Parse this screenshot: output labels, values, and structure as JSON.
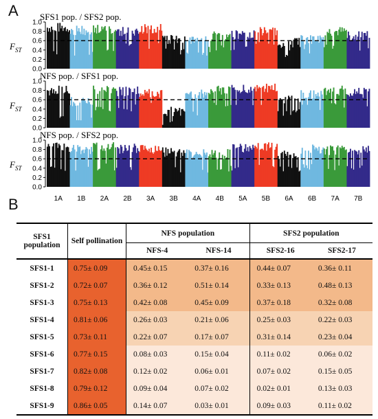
{
  "panel_a_label": "A",
  "panel_b_label": "B",
  "chart_data": {
    "type": "bar",
    "description_type": "manhattan",
    "ylabel": "FST",
    "ylabel_main": "F",
    "ylabel_sub": "ST",
    "ylim": [
      0,
      1.0
    ],
    "yticks": [
      "0.0",
      "0.2",
      "0.4",
      "0.6",
      "0.8",
      "1.0"
    ],
    "threshold": 0.6,
    "chromosomes": [
      "1A",
      "1B",
      "2A",
      "2B",
      "3A",
      "3B",
      "4A",
      "4B",
      "5A",
      "5B",
      "6A",
      "6B",
      "7A",
      "7B"
    ],
    "chromosome_colors": [
      "#111111",
      "#6fb8e0",
      "#3a9a3a",
      "#332a8a",
      "#ee3b24",
      "#111111",
      "#6fb8e0",
      "#3a9a3a",
      "#332a8a",
      "#ee3b24",
      "#111111",
      "#6fb8e0",
      "#3a9a3a",
      "#332a8a"
    ],
    "panels": [
      {
        "title": "SFS1 pop. / SFS2 pop.",
        "typical_fst": [
          0.88,
          0.82,
          0.85,
          0.8,
          0.85,
          0.62,
          0.6,
          0.7,
          0.72,
          0.78,
          0.55,
          0.62,
          0.8,
          0.7
        ],
        "dip_fst": [
          0.3,
          0.25,
          0.3,
          0.4,
          0.4,
          0.3,
          0.2,
          0.35,
          0.4,
          0.5,
          0.25,
          0.3,
          0.4,
          0.35
        ]
      },
      {
        "title": "NFS pop. / SFS1 pop.",
        "typical_fst": [
          0.8,
          0.55,
          0.82,
          0.78,
          0.72,
          0.35,
          0.72,
          0.8,
          0.82,
          0.85,
          0.6,
          0.7,
          0.8,
          0.75
        ],
        "dip_fst": [
          0.2,
          0.15,
          0.3,
          0.35,
          0.4,
          0.05,
          0.25,
          0.4,
          0.4,
          0.45,
          0.25,
          0.35,
          0.4,
          0.35
        ]
      },
      {
        "title": "NFS pop. / SFS2 pop.",
        "typical_fst": [
          0.85,
          0.8,
          0.85,
          0.82,
          0.8,
          0.75,
          0.7,
          0.7,
          0.82,
          0.85,
          0.7,
          0.82,
          0.78,
          0.8
        ],
        "dip_fst": [
          0.3,
          0.3,
          0.35,
          0.35,
          0.15,
          0.3,
          0.3,
          0.3,
          0.35,
          0.4,
          0.3,
          0.35,
          0.35,
          0.35
        ]
      }
    ]
  },
  "table": {
    "col_sfs1": "SFS1 population",
    "col_self": "Self pollination",
    "group_nfs": "NFS population",
    "group_sfs2": "SFS2 population",
    "sub_cols": [
      "NFS-4",
      "NFS-14",
      "SFS2-16",
      "SFS2-17"
    ],
    "band_colors": {
      "high": "#f3b98a",
      "mid": "#f7d3b3",
      "low": "#fce8da",
      "self": "#e8622e"
    },
    "rows": [
      {
        "name": "SFS1-1",
        "self": "0.75± 0.09",
        "nfs4": "0.45± 0.15",
        "nfs14": "0.37± 0.16",
        "sfs216": "0.44± 0.07",
        "sfs217": "0.36± 0.11"
      },
      {
        "name": "SFS1-2",
        "self": "0.72± 0.07",
        "nfs4": "0.36± 0.12",
        "nfs14": "0.51± 0.14",
        "sfs216": "0.33± 0.13",
        "sfs217": "0.48± 0.13"
      },
      {
        "name": "SFS1-3",
        "self": "0.75± 0.13",
        "nfs4": "0.42± 0.08",
        "nfs14": "0.45± 0.09",
        "sfs216": "0.37± 0.18",
        "sfs217": "0.32± 0.08"
      },
      {
        "name": "SFS1-4",
        "self": "0.81± 0.06",
        "nfs4": "0.26± 0.03",
        "nfs14": "0.21± 0.06",
        "sfs216": "0.25± 0.03",
        "sfs217": "0.22± 0.03"
      },
      {
        "name": "SFS1-5",
        "self": "0.73± 0.11",
        "nfs4": "0.22± 0.07",
        "nfs14": "0.17± 0.07",
        "sfs216": "0.31± 0.14",
        "sfs217": "0.23± 0.04"
      },
      {
        "name": "SFS1-6",
        "self": "0.77± 0.15",
        "nfs4": "0.08± 0.03",
        "nfs14": "0.15± 0.04",
        "sfs216": "0.11± 0.02",
        "sfs217": "0.06± 0.02"
      },
      {
        "name": "SFS1-7",
        "self": "0.82± 0.08",
        "nfs4": "0.12± 0.02",
        "nfs14": "0.06± 0.01",
        "sfs216": "0.07± 0.02",
        "sfs217": "0.15± 0.05"
      },
      {
        "name": "SFS1-8",
        "self": "0.79± 0.12",
        "nfs4": "0.09± 0.04",
        "nfs14": "0.07± 0.02",
        "sfs216": "0.02± 0.01",
        "sfs217": "0.13± 0.03"
      },
      {
        "name": "SFS1-9",
        "self": "0.86± 0.05",
        "nfs4": "0.14± 0.07",
        "nfs14": "0.03± 0.01",
        "sfs216": "0.09± 0.03",
        "sfs217": "0.11± 0.02"
      }
    ]
  }
}
